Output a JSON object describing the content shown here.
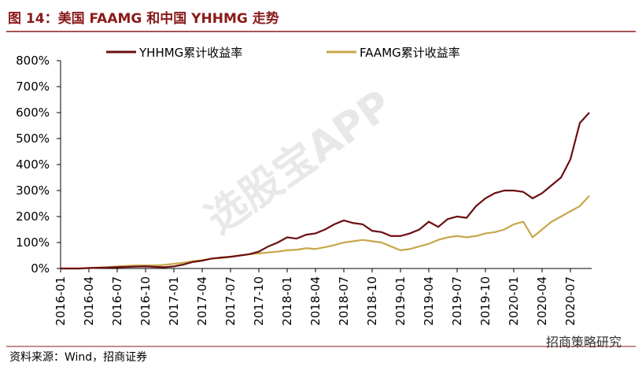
{
  "chart_data": {
    "type": "line",
    "title": "图 14：美国 FAAMG 和中国 YHHMG 走势",
    "source": "资料来源：Wind，招商证券",
    "watermark": "选股宝APP",
    "brand": "招商策略研究",
    "categories": [
      "2016-01",
      null,
      null,
      "2016-04",
      null,
      null,
      "2016-07",
      null,
      null,
      "2016-10",
      null,
      null,
      "2017-01",
      null,
      null,
      "2017-04",
      null,
      null,
      "2017-07",
      null,
      null,
      "2017-10",
      null,
      null,
      "2018-01",
      null,
      null,
      "2018-04",
      null,
      null,
      "2018-07",
      null,
      null,
      "2018-10",
      null,
      null,
      "2019-01",
      null,
      null,
      "2019-04",
      null,
      null,
      "2019-07",
      null,
      null,
      "2019-10",
      null,
      null,
      "2020-01",
      null,
      null,
      "2020-04",
      null,
      null,
      "2020-07",
      null,
      null
    ],
    "series": [
      {
        "name": "YHHMG累计收益率",
        "color": "#6b0f12",
        "values": [
          0,
          0,
          0,
          2,
          3,
          4,
          5,
          6,
          7,
          8,
          6,
          5,
          8,
          15,
          25,
          30,
          38,
          42,
          45,
          50,
          55,
          65,
          85,
          100,
          120,
          115,
          130,
          135,
          150,
          170,
          185,
          175,
          170,
          145,
          140,
          125,
          125,
          135,
          150,
          180,
          160,
          190,
          200,
          195,
          240,
          270,
          290,
          300,
          300,
          295,
          270,
          290,
          320,
          350,
          420,
          560,
          600
        ]
      },
      {
        "name": "FAAMG累计收益率",
        "color": "#c8a74a",
        "values": [
          0,
          0,
          0,
          2,
          3,
          5,
          8,
          10,
          12,
          12,
          12,
          14,
          18,
          22,
          28,
          32,
          38,
          40,
          45,
          50,
          55,
          58,
          62,
          65,
          70,
          72,
          78,
          75,
          82,
          90,
          100,
          105,
          110,
          105,
          100,
          85,
          70,
          75,
          85,
          95,
          110,
          120,
          125,
          120,
          125,
          135,
          140,
          150,
          170,
          180,
          120,
          150,
          180,
          200,
          220,
          240,
          280
        ]
      }
    ],
    "ylim": [
      0,
      800
    ],
    "yticks": [
      {
        "value": 0,
        "label": "0%"
      },
      {
        "value": 100,
        "label": "100%"
      },
      {
        "value": 200,
        "label": "200%"
      },
      {
        "value": 300,
        "label": "300%"
      },
      {
        "value": 400,
        "label": "400%"
      },
      {
        "value": 500,
        "label": "500%"
      },
      {
        "value": 600,
        "label": "600%"
      },
      {
        "value": 700,
        "label": "700%"
      },
      {
        "value": 800,
        "label": "800%"
      }
    ],
    "legend": "top"
  }
}
